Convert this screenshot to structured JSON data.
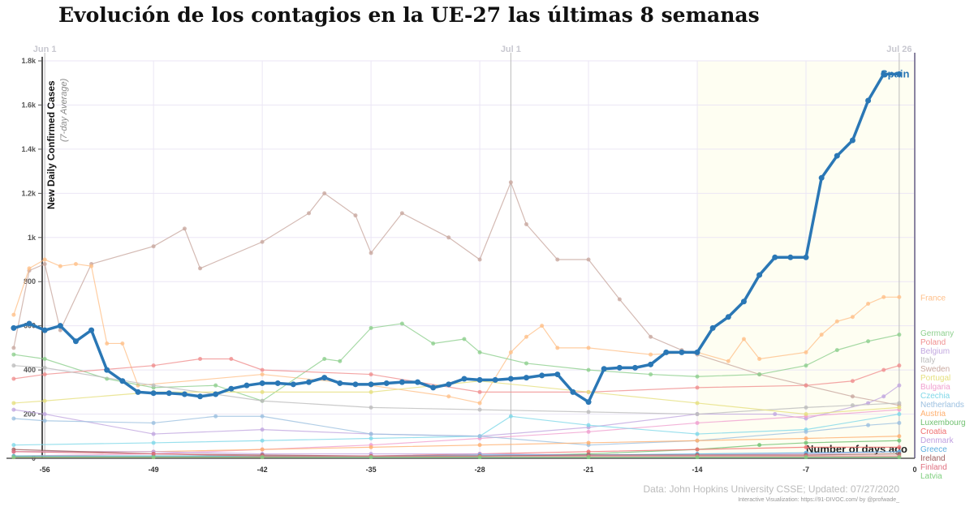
{
  "title": "Evolución de los contagios en la UE-27 las últimas 8 semanas",
  "footer": {
    "source": "Data: John Hopkins University CSSE; Updated: 07/27/2020",
    "credit": "Interactive Visualization: https://91-DIVOC.com/ by @profwade_"
  },
  "chart_data": {
    "type": "line",
    "title": "Evolución de los contagios en la UE-27 las últimas 8 semanas",
    "xlabel": "Number of days ago",
    "ylabel": "New Daily Confirmed Cases",
    "ylabel_sub": "(7-day Average)",
    "xlim": [
      -58.5,
      0
    ],
    "ylim": [
      0,
      1800
    ],
    "xticks": [
      -56,
      -49,
      -42,
      -35,
      -28,
      -21,
      -14,
      -7,
      0
    ],
    "yticks": [
      {
        "v": 0,
        "l": "0"
      },
      {
        "v": 200,
        "l": "200"
      },
      {
        "v": 400,
        "l": "400"
      },
      {
        "v": 600,
        "l": "600"
      },
      {
        "v": 800,
        "l": "800"
      },
      {
        "v": 1000,
        "l": "1k"
      },
      {
        "v": 1200,
        "l": "1.2k"
      },
      {
        "v": 1400,
        "l": "1.4k"
      },
      {
        "v": 1600,
        "l": "1.6k"
      },
      {
        "v": 1800,
        "l": "1.8k"
      }
    ],
    "date_markers": [
      {
        "x": -56,
        "label": "Jun 1"
      },
      {
        "x": -26,
        "label": "Jul 1"
      },
      {
        "x": -1,
        "label": "Jul 26"
      }
    ],
    "grid": true,
    "highlight_last_days": 14,
    "series": [
      {
        "name": "Sweden",
        "color": "#c9a9a0",
        "x": [
          -58,
          -57,
          -56,
          -55,
          -53,
          -49,
          -47,
          -46,
          -42,
          -39,
          -38,
          -36,
          -35,
          -33,
          -30,
          -28,
          -26,
          -25,
          -23,
          -21,
          -19,
          -17,
          -15,
          -14,
          -10,
          -7,
          -4,
          -1
        ],
        "values": [
          500,
          850,
          880,
          580,
          880,
          960,
          1040,
          860,
          980,
          1110,
          1200,
          1100,
          930,
          1110,
          1000,
          900,
          1250,
          1060,
          900,
          900,
          720,
          550,
          490,
          470,
          380,
          330,
          280,
          240
        ]
      },
      {
        "name": "France",
        "color": "#ffc08a",
        "x": [
          -58,
          -57,
          -56,
          -55,
          -54,
          -53,
          -52,
          -51,
          -50,
          -42,
          -35,
          -30,
          -28,
          -26,
          -25,
          -24,
          -23,
          -21,
          -17,
          -14,
          -12,
          -11,
          -10,
          -7,
          -6,
          -5,
          -4,
          -3,
          -2,
          -1
        ],
        "values": [
          650,
          860,
          900,
          870,
          880,
          870,
          520,
          520,
          330,
          380,
          330,
          280,
          250,
          480,
          550,
          600,
          500,
          500,
          470,
          480,
          440,
          540,
          450,
          480,
          560,
          620,
          640,
          700,
          730,
          730
        ]
      },
      {
        "name": "Germany",
        "color": "#8fd08f",
        "x": [
          -58,
          -56,
          -52,
          -49,
          -45,
          -42,
          -38,
          -37,
          -35,
          -33,
          -31,
          -29,
          -28,
          -25,
          -21,
          -17,
          -14,
          -10,
          -7,
          -5,
          -3,
          -1
        ],
        "values": [
          470,
          450,
          360,
          320,
          330,
          260,
          450,
          440,
          590,
          610,
          520,
          540,
          480,
          430,
          400,
          380,
          370,
          380,
          420,
          490,
          530,
          560
        ]
      },
      {
        "name": "Poland",
        "color": "#f09090",
        "x": [
          -58,
          -56,
          -49,
          -46,
          -44,
          -42,
          -35,
          -28,
          -21,
          -14,
          -7,
          -4,
          -2,
          -1
        ],
        "values": [
          360,
          380,
          420,
          450,
          450,
          400,
          380,
          300,
          300,
          320,
          330,
          350,
          400,
          420
        ]
      },
      {
        "name": "Belgium",
        "color": "#c2a8e0",
        "x": [
          -58,
          -56,
          -49,
          -42,
          -35,
          -28,
          -21,
          -14,
          -9,
          -7,
          -3,
          -2,
          -1
        ],
        "values": [
          220,
          200,
          110,
          130,
          110,
          100,
          140,
          200,
          200,
          180,
          250,
          280,
          330
        ]
      },
      {
        "name": "Italy",
        "color": "#bdbdbd",
        "x": [
          -58,
          -56,
          -49,
          -42,
          -35,
          -28,
          -21,
          -14,
          -7,
          -4,
          -1
        ],
        "values": [
          420,
          410,
          330,
          260,
          230,
          220,
          210,
          200,
          230,
          240,
          250
        ]
      },
      {
        "name": "Bulgaria",
        "color": "#f0a0d0",
        "x": [
          -58,
          -49,
          -42,
          -35,
          -28,
          -21,
          -14,
          -7,
          -1
        ],
        "values": [
          10,
          20,
          40,
          60,
          90,
          120,
          160,
          190,
          220
        ]
      },
      {
        "name": "Portugal",
        "color": "#e6e080",
        "x": [
          -58,
          -56,
          -49,
          -42,
          -35,
          -28,
          -21,
          -14,
          -7,
          -1
        ],
        "values": [
          250,
          260,
          300,
          300,
          300,
          350,
          300,
          250,
          200,
          230
        ]
      },
      {
        "name": "Czechia",
        "color": "#80d8e8",
        "x": [
          -58,
          -49,
          -42,
          -35,
          -28,
          -26,
          -21,
          -14,
          -7,
          -1
        ],
        "values": [
          60,
          70,
          80,
          90,
          100,
          190,
          150,
          110,
          130,
          200
        ]
      },
      {
        "name": "Netherlands",
        "color": "#9cc0e0",
        "x": [
          -58,
          -56,
          -49,
          -45,
          -42,
          -35,
          -28,
          -21,
          -14,
          -7,
          -3,
          -1
        ],
        "values": [
          180,
          170,
          160,
          190,
          190,
          110,
          100,
          60,
          80,
          120,
          150,
          160
        ]
      },
      {
        "name": "Austria",
        "color": "#ffb070",
        "x": [
          -58,
          -49,
          -42,
          -35,
          -28,
          -21,
          -14,
          -7,
          -1
        ],
        "values": [
          30,
          30,
          40,
          50,
          60,
          70,
          80,
          90,
          100
        ]
      },
      {
        "name": "Luxembourg",
        "color": "#70c070",
        "x": [
          -58,
          -49,
          -42,
          -35,
          -28,
          -21,
          -14,
          -10,
          -7,
          -1
        ],
        "values": [
          10,
          10,
          10,
          10,
          10,
          20,
          40,
          60,
          70,
          80
        ]
      },
      {
        "name": "Croatia",
        "color": "#f07070",
        "x": [
          -58,
          -49,
          -42,
          -35,
          -28,
          -21,
          -14,
          -7,
          -1
        ],
        "values": [
          5,
          5,
          5,
          10,
          20,
          30,
          40,
          50,
          50
        ]
      },
      {
        "name": "Denmark",
        "color": "#c0a0e0",
        "x": [
          -58,
          -49,
          -42,
          -35,
          -28,
          -21,
          -14,
          -7,
          -1
        ],
        "values": [
          30,
          30,
          20,
          20,
          20,
          15,
          15,
          20,
          30
        ]
      },
      {
        "name": "Greece",
        "color": "#60b0e0",
        "x": [
          -58,
          -49,
          -42,
          -35,
          -28,
          -21,
          -14,
          -7,
          -1
        ],
        "values": [
          10,
          10,
          10,
          10,
          15,
          15,
          20,
          25,
          30
        ]
      },
      {
        "name": "Ireland",
        "color": "#a06060",
        "x": [
          -58,
          -49,
          -42,
          -35,
          -28,
          -21,
          -14,
          -7,
          -1
        ],
        "values": [
          40,
          20,
          15,
          10,
          10,
          15,
          15,
          15,
          20
        ]
      },
      {
        "name": "Finland",
        "color": "#e07080",
        "x": [
          -58,
          -49,
          -42,
          -35,
          -28,
          -21,
          -14,
          -7,
          -1
        ],
        "values": [
          30,
          20,
          10,
          10,
          10,
          10,
          10,
          10,
          10
        ]
      },
      {
        "name": "Latvia",
        "color": "#80d080",
        "x": [
          -58,
          -49,
          -42,
          -35,
          -28,
          -21,
          -14,
          -7,
          -1
        ],
        "values": [
          5,
          5,
          5,
          5,
          5,
          5,
          5,
          5,
          5
        ]
      },
      {
        "name": "Spain",
        "color": "#2a77b5",
        "highlight": true,
        "x": [
          -58,
          -57,
          -56,
          -55,
          -54,
          -53,
          -52,
          -51,
          -50,
          -49,
          -48,
          -47,
          -46,
          -45,
          -44,
          -43,
          -42,
          -41,
          -40,
          -39,
          -38,
          -37,
          -36,
          -35,
          -34,
          -33,
          -32,
          -31,
          -30,
          -29,
          -28,
          -27,
          -26,
          -25,
          -24,
          -23,
          -22,
          -21,
          -20,
          -19,
          -18,
          -17,
          -16,
          -15,
          -14,
          -13,
          -12,
          -11,
          -10,
          -9,
          -8,
          -7,
          -6,
          -5,
          -4,
          -3,
          -2,
          -1
        ],
        "values": [
          590,
          610,
          580,
          600,
          530,
          580,
          400,
          350,
          300,
          295,
          295,
          290,
          280,
          290,
          315,
          330,
          340,
          340,
          335,
          345,
          365,
          340,
          335,
          335,
          340,
          345,
          345,
          320,
          335,
          360,
          355,
          355,
          360,
          365,
          375,
          380,
          300,
          255,
          405,
          410,
          410,
          425,
          480,
          480,
          480,
          590,
          640,
          710,
          830,
          910,
          910,
          910,
          1270,
          1370,
          1440,
          1620,
          1740,
          1740
        ]
      }
    ]
  }
}
